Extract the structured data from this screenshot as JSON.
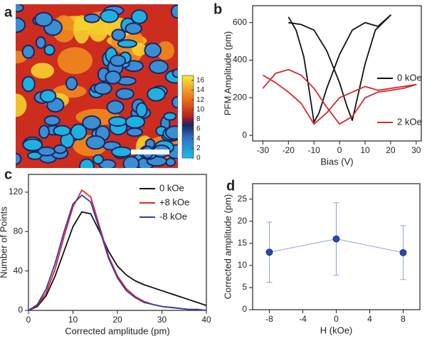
{
  "chart_data": [
    {
      "type": "image",
      "label": "a",
      "clim": [
        0,
        17
      ],
      "colorbar_ticks": [
        0,
        2,
        4,
        6,
        8,
        10,
        12,
        14,
        16
      ]
    },
    {
      "type": "line",
      "label": "b",
      "xlabel": "Bias (V)",
      "ylabel": "PFM Amplitude (pm)",
      "xlim": [
        -34,
        32
      ],
      "xticks": [
        -30,
        -20,
        -10,
        0,
        10,
        20,
        30
      ],
      "ylim": [
        -30,
        690
      ],
      "yticks": [
        0,
        200,
        400,
        600
      ],
      "series": [
        {
          "name": "0 kOe",
          "color": "#111111",
          "x": [
            -20,
            -17,
            -14,
            -12,
            -10,
            -8,
            -5,
            0,
            5,
            10,
            15,
            20,
            17,
            14,
            10,
            7,
            5,
            3,
            0,
            -5,
            -10,
            -15,
            -20
          ],
          "values": [
            630,
            560,
            420,
            250,
            70,
            120,
            250,
            430,
            560,
            600,
            580,
            640,
            600,
            560,
            380,
            200,
            80,
            150,
            280,
            450,
            560,
            590,
            600
          ]
        },
        {
          "name": "2 kOe",
          "color": "#d42a2a",
          "x": [
            -30,
            -25,
            -20,
            -15,
            -10,
            -5,
            0,
            5,
            10,
            15,
            20,
            25,
            30,
            25,
            20,
            15,
            10,
            5,
            0,
            -5,
            -10,
            -15,
            -20,
            -25,
            -30
          ],
          "values": [
            320,
            280,
            230,
            170,
            60,
            120,
            200,
            230,
            260,
            240,
            250,
            260,
            270,
            250,
            240,
            230,
            200,
            100,
            60,
            150,
            250,
            320,
            350,
            330,
            250
          ]
        }
      ]
    },
    {
      "type": "line",
      "label": "c",
      "xlabel": "Corrected amplitude (pm)",
      "ylabel": "Number of Points",
      "xlim": [
        0,
        40
      ],
      "xticks": [
        0,
        10,
        20,
        30,
        40
      ],
      "ylim": [
        0,
        138
      ],
      "yticks": [
        0,
        40,
        80,
        120
      ],
      "x": [
        0,
        2,
        4,
        6,
        8,
        10,
        12,
        14,
        16,
        18,
        20,
        22,
        24,
        26,
        28,
        30,
        32,
        34,
        36,
        38,
        40
      ],
      "series": [
        {
          "name": "0 kOe",
          "color": "#111111",
          "values": [
            0,
            4,
            15,
            35,
            60,
            85,
            100,
            98,
            80,
            60,
            45,
            36,
            30,
            26,
            23,
            20,
            17,
            14,
            11,
            8,
            5
          ]
        },
        {
          "name": "+8 kOe",
          "color": "#e02626",
          "values": [
            0,
            5,
            18,
            42,
            75,
            105,
            122,
            115,
            85,
            55,
            35,
            22,
            14,
            9,
            6,
            4,
            3,
            2,
            1,
            1,
            0
          ]
        },
        {
          "name": "-8 kOe",
          "color": "#2e3fb0",
          "values": [
            0,
            6,
            22,
            48,
            80,
            108,
            117,
            110,
            82,
            53,
            33,
            20,
            13,
            8,
            6,
            4,
            3,
            2,
            1,
            1,
            0
          ]
        }
      ]
    },
    {
      "type": "errorbar",
      "label": "d",
      "xlabel": "H (kOe)",
      "ylabel": "Corrected amplitude (pm)",
      "xlim": [
        -10,
        10
      ],
      "xticks": [
        -8,
        -4,
        0,
        4,
        8
      ],
      "ylim": [
        0,
        28.5
      ],
      "yticks": [
        0,
        5,
        10,
        15,
        20,
        25
      ],
      "x": [
        -8,
        0,
        8
      ],
      "values": [
        13,
        16,
        12.9
      ],
      "errors": [
        6.8,
        8.2,
        6.1
      ],
      "color": "#2a48b8",
      "line_color": "#8fa0e0"
    }
  ]
}
